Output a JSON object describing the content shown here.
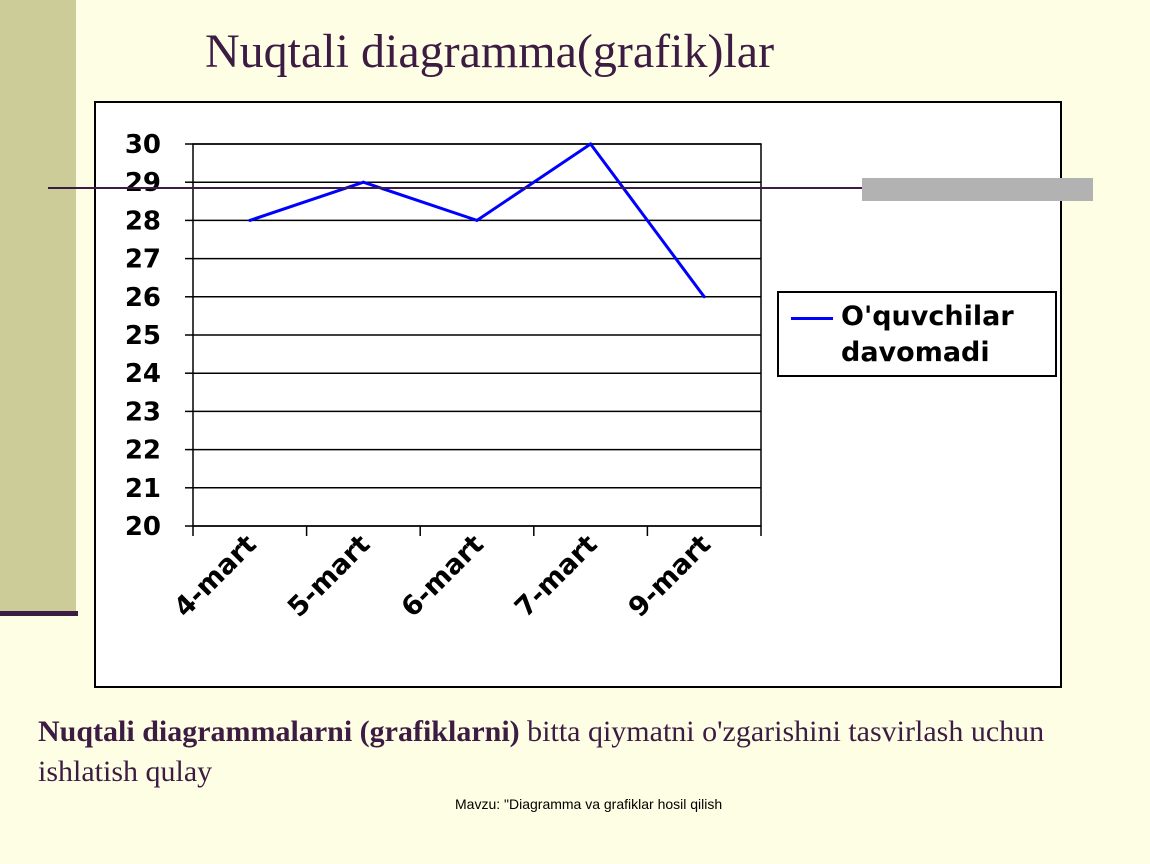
{
  "slide": {
    "title": "Nuqtali diagramma(grafik)lar",
    "body_bold": "Nuqtali diagrammalarni (grafiklarni)",
    "body_rest": " bitta qiymatni o'zgarishini tasvirlash uchun ishlatish qulay",
    "footer": "Mavzu:  \"Diagramma va grafiklar hosil qilish"
  },
  "colors": {
    "background": "#fefee4",
    "accent_band": "#cccc99",
    "title_text": "#3d1c44",
    "series_line": "#0000ff",
    "deco_bar": "#b2b2b2"
  },
  "chart_data": {
    "type": "line",
    "title": "",
    "xlabel": "",
    "ylabel": "",
    "categories": [
      "4-mart",
      "5-mart",
      "6-mart",
      "7-mart",
      "9-mart"
    ],
    "series": [
      {
        "name": "O'quvchilar davomadi",
        "values": [
          28,
          29,
          28,
          30,
          26
        ]
      }
    ],
    "ylim": [
      20,
      30
    ],
    "yticks": [
      20,
      21,
      22,
      23,
      24,
      25,
      26,
      27,
      28,
      29,
      30
    ],
    "grid": true,
    "legend": "right"
  }
}
